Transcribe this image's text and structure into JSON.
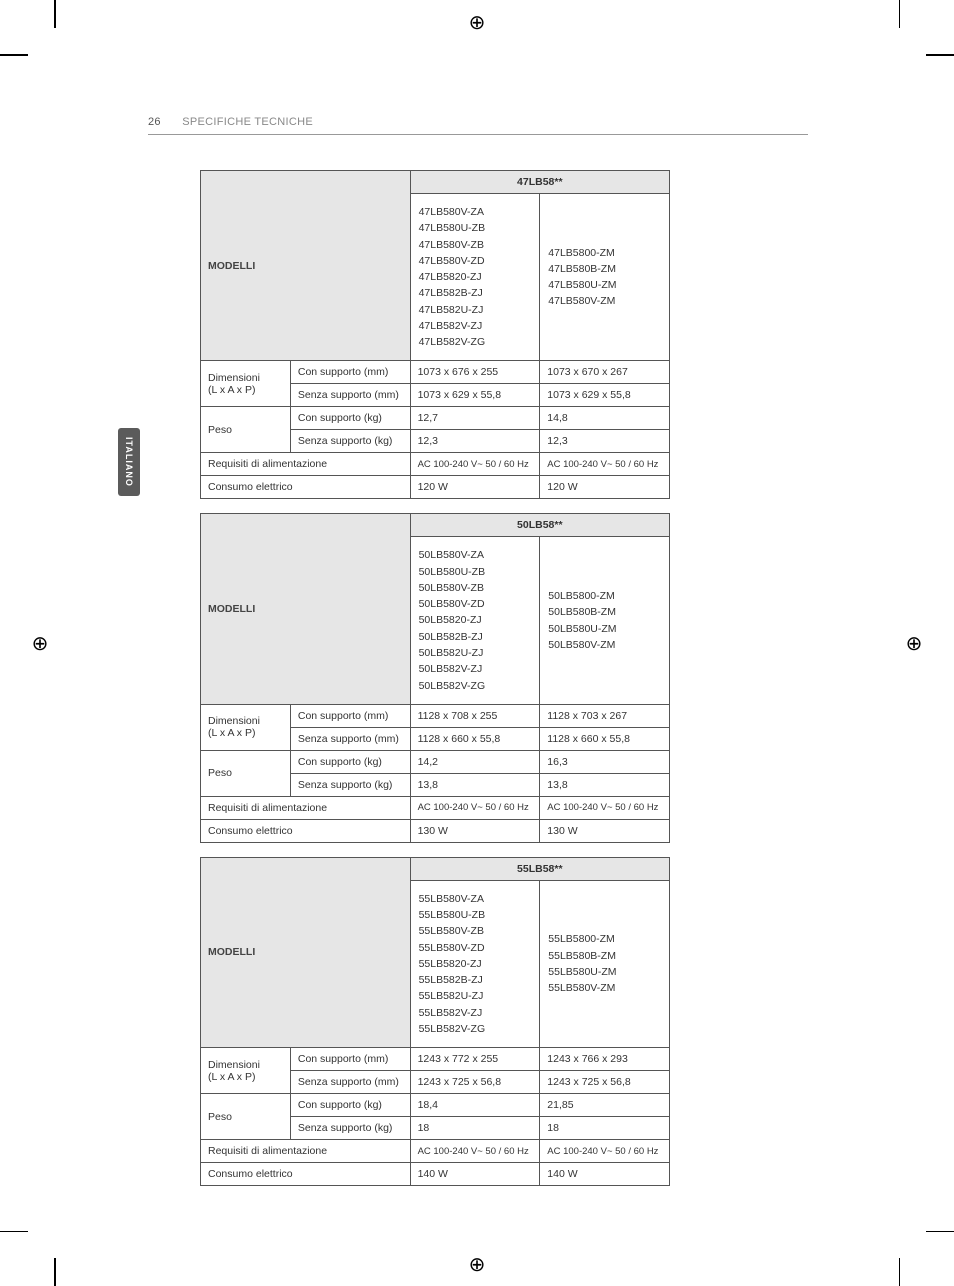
{
  "header": {
    "page_number": "26",
    "section_title": "SPECIFICHE TECNICHE"
  },
  "side_tab": "ITALIANO",
  "labels": {
    "modelli": "MODELLI",
    "dimensioni": "Dimensioni",
    "dimensioni_unit": "(L x A x P)",
    "con_supporto_mm": "Con supporto (mm)",
    "senza_supporto_mm": "Senza supporto (mm)",
    "peso": "Peso",
    "con_supporto_kg": "Con supporto (kg)",
    "senza_supporto_kg": "Senza supporto (kg)",
    "requisiti": "Requisiti di alimentazione",
    "consumo": "Consumo elettrico"
  },
  "tables": [
    {
      "series": "47LB58**",
      "models_a": [
        "47LB580V-ZA",
        "47LB580U-ZB",
        "47LB580V-ZB",
        "47LB580V-ZD",
        "47LB5820-ZJ",
        "47LB582B-ZJ",
        "47LB582U-ZJ",
        "47LB582V-ZJ",
        "47LB582V-ZG"
      ],
      "models_b": [
        "47LB5800-ZM",
        "47LB580B-ZM",
        "47LB580U-ZM",
        "47LB580V-ZM"
      ],
      "dim_con": [
        "1073 x 676 x 255",
        "1073 x 670 x 267"
      ],
      "dim_senza": [
        "1073 x 629 x 55,8",
        "1073 x 629 x 55,8"
      ],
      "peso_con": [
        "12,7",
        "14,8"
      ],
      "peso_senza": [
        "12,3",
        "12,3"
      ],
      "power": [
        "AC 100-240 V~ 50 / 60 Hz",
        "AC 100-240 V~ 50 / 60 Hz"
      ],
      "consumption": [
        "120 W",
        "120 W"
      ]
    },
    {
      "series": "50LB58**",
      "models_a": [
        "50LB580V-ZA",
        "50LB580U-ZB",
        "50LB580V-ZB",
        "50LB580V-ZD",
        "50LB5820-ZJ",
        "50LB582B-ZJ",
        "50LB582U-ZJ",
        "50LB582V-ZJ",
        "50LB582V-ZG"
      ],
      "models_b": [
        "50LB5800-ZM",
        "50LB580B-ZM",
        "50LB580U-ZM",
        "50LB580V-ZM"
      ],
      "dim_con": [
        "1128 x 708 x 255",
        "1128 x 703 x 267"
      ],
      "dim_senza": [
        "1128 x 660 x 55,8",
        "1128 x 660 x 55,8"
      ],
      "peso_con": [
        "14,2",
        "16,3"
      ],
      "peso_senza": [
        "13,8",
        "13,8"
      ],
      "power": [
        "AC 100-240 V~ 50 / 60 Hz",
        "AC 100-240 V~ 50 / 60 Hz"
      ],
      "consumption": [
        "130 W",
        "130 W"
      ]
    },
    {
      "series": "55LB58**",
      "models_a": [
        "55LB580V-ZA",
        "55LB580U-ZB",
        "55LB580V-ZB",
        "55LB580V-ZD",
        "55LB5820-ZJ",
        "55LB582B-ZJ",
        "55LB582U-ZJ",
        "55LB582V-ZJ",
        "55LB582V-ZG"
      ],
      "models_b": [
        "55LB5800-ZM",
        "55LB580B-ZM",
        "55LB580U-ZM",
        "55LB580V-ZM"
      ],
      "dim_con": [
        "1243 x 772 x 255",
        "1243 x 766 x 293"
      ],
      "dim_senza": [
        "1243 x 725 x 56,8",
        "1243 x 725 x 56,8"
      ],
      "peso_con": [
        "18,4",
        "21,85"
      ],
      "peso_senza": [
        "18",
        "18"
      ],
      "power": [
        "AC 100-240 V~ 50 / 60 Hz",
        "AC 100-240 V~ 50 / 60 Hz"
      ],
      "consumption": [
        "140 W",
        "140 W"
      ]
    }
  ],
  "style": {
    "page_bg": "#ffffff",
    "border_color": "#555555",
    "header_bg": "#e6e6e6",
    "text_color": "#333333",
    "muted_color": "#888888",
    "tab_bg": "#5b5b5b",
    "font_size_body": 10.5,
    "font_size_header": 11
  }
}
